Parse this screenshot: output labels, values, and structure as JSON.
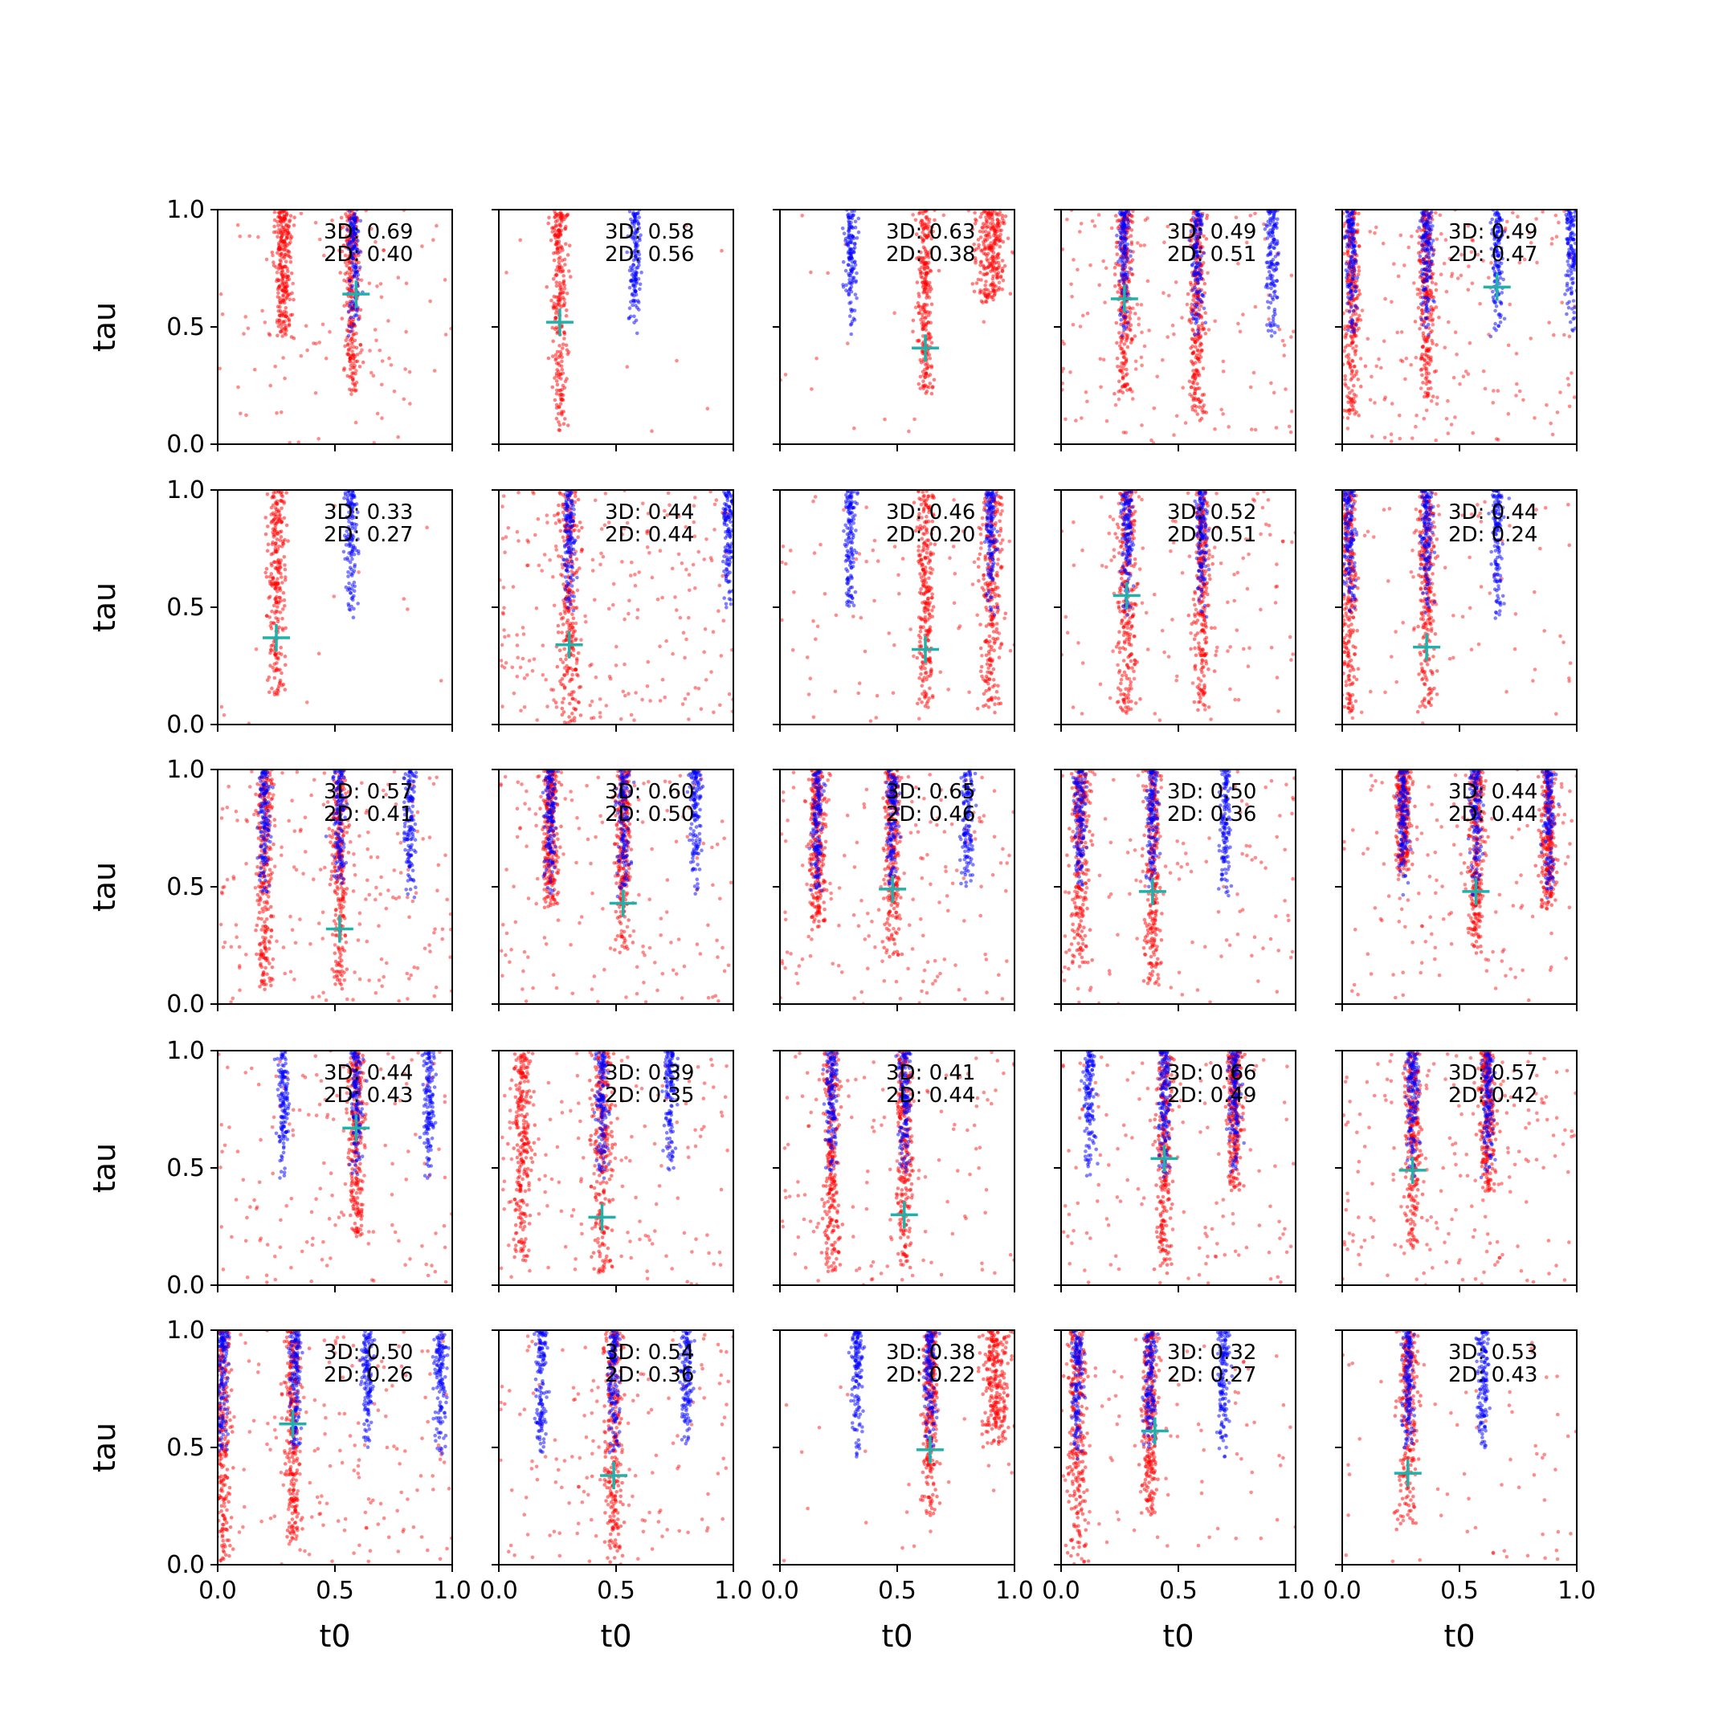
{
  "chart_data": {
    "type": "scatter",
    "layout": "5x5 grid of small-multiple scatter plots, shared axes",
    "xlabel": "t0",
    "ylabel": "tau",
    "xlim": [
      0,
      1
    ],
    "ylim": [
      0,
      1
    ],
    "x_ticks": [
      "0.0",
      "0.5",
      "1.0"
    ],
    "y_ticks": [
      "0.0",
      "0.5",
      "1.0"
    ],
    "grid": false,
    "legend": "none",
    "colors": {
      "red_points": "#ff0000",
      "blue_points": "#0000ff",
      "marker": "#20b2aa"
    },
    "panels": [
      {
        "row": 0,
        "col": 0,
        "score_3d": "3D: 0.69",
        "score_2d": "2D: 0.40",
        "marker": [
          0.59,
          0.64
        ],
        "blue_bands": [
          0.58
        ],
        "red_bands": [
          {
            "x": 0.28,
            "y_min": 0.45,
            "w": 0.03
          },
          {
            "x": 0.57,
            "y_min": 0.22,
            "w": 0.03
          }
        ],
        "red_bg": 0.25
      },
      {
        "row": 0,
        "col": 1,
        "score_3d": "3D: 0.58",
        "score_2d": "2D: 0.56",
        "marker": [
          0.26,
          0.52
        ],
        "blue_bands": [
          0.58
        ],
        "red_bands": [
          {
            "x": 0.26,
            "y_min": 0.05,
            "w": 0.03
          }
        ],
        "red_bg": 0.02
      },
      {
        "row": 0,
        "col": 2,
        "score_3d": "3D: 0.63",
        "score_2d": "2D: 0.38",
        "marker": [
          0.62,
          0.41
        ],
        "blue_bands": [
          0.3
        ],
        "red_bands": [
          {
            "x": 0.62,
            "y_min": 0.2,
            "w": 0.03
          },
          {
            "x": 0.9,
            "y_min": 0.6,
            "w": 0.06
          }
        ],
        "red_bg": 0.05
      },
      {
        "row": 0,
        "col": 3,
        "score_3d": "3D: 0.49",
        "score_2d": "2D: 0.51",
        "marker": [
          0.27,
          0.62
        ],
        "blue_bands": [
          0.27,
          0.58,
          0.9
        ],
        "red_bands": [
          {
            "x": 0.27,
            "y_min": 0.2,
            "w": 0.03
          },
          {
            "x": 0.58,
            "y_min": 0.1,
            "w": 0.03
          }
        ],
        "red_bg": 0.35
      },
      {
        "row": 0,
        "col": 4,
        "score_3d": "3D: 0.49",
        "score_2d": "2D: 0.47",
        "marker": [
          0.66,
          0.67
        ],
        "blue_bands": [
          0.04,
          0.36,
          0.66,
          0.98
        ],
        "red_bands": [
          {
            "x": 0.04,
            "y_min": 0.1,
            "w": 0.03
          },
          {
            "x": 0.36,
            "y_min": 0.2,
            "w": 0.03
          }
        ],
        "red_bg": 0.4
      },
      {
        "row": 1,
        "col": 0,
        "score_3d": "3D: 0.33",
        "score_2d": "2D: 0.27",
        "marker": [
          0.25,
          0.37
        ],
        "blue_bands": [
          0.57
        ],
        "red_bands": [
          {
            "x": 0.25,
            "y_min": 0.12,
            "w": 0.035
          }
        ],
        "red_bg": 0.03
      },
      {
        "row": 1,
        "col": 1,
        "score_3d": "3D: 0.44",
        "score_2d": "2D: 0.44",
        "marker": [
          0.3,
          0.34
        ],
        "blue_bands": [
          0.3,
          0.98
        ],
        "red_bands": [
          {
            "x": 0.3,
            "y_min": 0.0,
            "w": 0.04
          }
        ],
        "red_bg": 0.55
      },
      {
        "row": 1,
        "col": 2,
        "score_3d": "3D: 0.46",
        "score_2d": "2D: 0.20",
        "marker": [
          0.62,
          0.32
        ],
        "blue_bands": [
          0.3,
          0.9
        ],
        "red_bands": [
          {
            "x": 0.62,
            "y_min": 0.05,
            "w": 0.03
          },
          {
            "x": 0.9,
            "y_min": 0.05,
            "w": 0.04
          }
        ],
        "red_bg": 0.2
      },
      {
        "row": 1,
        "col": 3,
        "score_3d": "3D: 0.52",
        "score_2d": "2D: 0.51",
        "marker": [
          0.28,
          0.55
        ],
        "blue_bands": [
          0.28,
          0.6
        ],
        "red_bands": [
          {
            "x": 0.28,
            "y_min": 0.05,
            "w": 0.035
          },
          {
            "x": 0.6,
            "y_min": 0.05,
            "w": 0.03
          }
        ],
        "red_bg": 0.3
      },
      {
        "row": 1,
        "col": 4,
        "score_3d": "3D: 0.44",
        "score_2d": "2D: 0.24",
        "marker": [
          0.36,
          0.33
        ],
        "blue_bands": [
          0.03,
          0.36,
          0.66
        ],
        "red_bands": [
          {
            "x": 0.03,
            "y_min": 0.05,
            "w": 0.03
          },
          {
            "x": 0.36,
            "y_min": 0.05,
            "w": 0.03
          }
        ],
        "red_bg": 0.2
      },
      {
        "row": 2,
        "col": 0,
        "score_3d": "3D: 0.57",
        "score_2d": "2D: 0.41",
        "marker": [
          0.52,
          0.32
        ],
        "blue_bands": [
          0.2,
          0.52,
          0.82
        ],
        "red_bands": [
          {
            "x": 0.2,
            "y_min": 0.05,
            "w": 0.03
          },
          {
            "x": 0.52,
            "y_min": 0.05,
            "w": 0.03
          }
        ],
        "red_bg": 0.45
      },
      {
        "row": 2,
        "col": 1,
        "score_3d": "3D: 0.60",
        "score_2d": "2D: 0.50",
        "marker": [
          0.53,
          0.43
        ],
        "blue_bands": [
          0.22,
          0.53,
          0.84
        ],
        "red_bands": [
          {
            "x": 0.22,
            "y_min": 0.4,
            "w": 0.03
          },
          {
            "x": 0.53,
            "y_min": 0.2,
            "w": 0.03
          }
        ],
        "red_bg": 0.35
      },
      {
        "row": 2,
        "col": 2,
        "score_3d": "3D: 0.65",
        "score_2d": "2D: 0.46",
        "marker": [
          0.48,
          0.49
        ],
        "blue_bands": [
          0.16,
          0.48,
          0.8
        ],
        "red_bands": [
          {
            "x": 0.16,
            "y_min": 0.3,
            "w": 0.03
          },
          {
            "x": 0.48,
            "y_min": 0.2,
            "w": 0.03
          }
        ],
        "red_bg": 0.4
      },
      {
        "row": 2,
        "col": 3,
        "score_3d": "3D: 0.50",
        "score_2d": "2D: 0.36",
        "marker": [
          0.39,
          0.48
        ],
        "blue_bands": [
          0.08,
          0.39,
          0.7
        ],
        "red_bands": [
          {
            "x": 0.08,
            "y_min": 0.15,
            "w": 0.035
          },
          {
            "x": 0.39,
            "y_min": 0.05,
            "w": 0.03
          }
        ],
        "red_bg": 0.3
      },
      {
        "row": 2,
        "col": 4,
        "score_3d": "3D: 0.44",
        "score_2d": "2D: 0.44",
        "marker": [
          0.57,
          0.48
        ],
        "blue_bands": [
          0.26,
          0.57,
          0.88
        ],
        "red_bands": [
          {
            "x": 0.26,
            "y_min": 0.55,
            "w": 0.03
          },
          {
            "x": 0.57,
            "y_min": 0.2,
            "w": 0.03
          },
          {
            "x": 0.88,
            "y_min": 0.4,
            "w": 0.03
          }
        ],
        "red_bg": 0.3
      },
      {
        "row": 3,
        "col": 0,
        "score_3d": "3D: 0.44",
        "score_2d": "2D: 0.43",
        "marker": [
          0.59,
          0.67
        ],
        "blue_bands": [
          0.28,
          0.59,
          0.9
        ],
        "red_bands": [
          {
            "x": 0.59,
            "y_min": 0.2,
            "w": 0.03
          }
        ],
        "red_bg": 0.35
      },
      {
        "row": 3,
        "col": 1,
        "score_3d": "3D: 0.39",
        "score_2d": "2D: 0.35",
        "marker": [
          0.44,
          0.29
        ],
        "blue_bands": [
          0.44,
          0.73
        ],
        "red_bands": [
          {
            "x": 0.1,
            "y_min": 0.1,
            "w": 0.04
          },
          {
            "x": 0.44,
            "y_min": 0.05,
            "w": 0.04
          }
        ],
        "red_bg": 0.35
      },
      {
        "row": 3,
        "col": 2,
        "score_3d": "3D: 0.41",
        "score_2d": "2D: 0.44",
        "marker": [
          0.53,
          0.3
        ],
        "blue_bands": [
          0.22,
          0.53
        ],
        "red_bands": [
          {
            "x": 0.22,
            "y_min": 0.05,
            "w": 0.03
          },
          {
            "x": 0.53,
            "y_min": 0.05,
            "w": 0.03
          }
        ],
        "red_bg": 0.3
      },
      {
        "row": 3,
        "col": 3,
        "score_3d": "3D: 0.66",
        "score_2d": "2D: 0.49",
        "marker": [
          0.44,
          0.54
        ],
        "blue_bands": [
          0.12,
          0.44,
          0.74
        ],
        "red_bands": [
          {
            "x": 0.44,
            "y_min": 0.05,
            "w": 0.03
          },
          {
            "x": 0.74,
            "y_min": 0.4,
            "w": 0.03
          }
        ],
        "red_bg": 0.3
      },
      {
        "row": 3,
        "col": 4,
        "score_3d": "3D: 0.57",
        "score_2d": "2D: 0.42",
        "marker": [
          0.3,
          0.49
        ],
        "blue_bands": [
          0.3,
          0.62
        ],
        "red_bands": [
          {
            "x": 0.3,
            "y_min": 0.15,
            "w": 0.03
          },
          {
            "x": 0.62,
            "y_min": 0.4,
            "w": 0.03
          }
        ],
        "red_bg": 0.45
      },
      {
        "row": 4,
        "col": 0,
        "score_3d": "3D: 0.50",
        "score_2d": "2D: 0.26",
        "marker": [
          0.32,
          0.6
        ],
        "blue_bands": [
          0.02,
          0.33,
          0.64,
          0.95
        ],
        "red_bands": [
          {
            "x": 0.02,
            "y_min": 0.0,
            "w": 0.03
          },
          {
            "x": 0.32,
            "y_min": 0.1,
            "w": 0.03
          }
        ],
        "red_bg": 0.4
      },
      {
        "row": 4,
        "col": 1,
        "score_3d": "3D: 0.54",
        "score_2d": "2D: 0.36",
        "marker": [
          0.49,
          0.38
        ],
        "blue_bands": [
          0.18,
          0.49,
          0.8
        ],
        "red_bands": [
          {
            "x": 0.49,
            "y_min": 0.0,
            "w": 0.035
          }
        ],
        "red_bg": 0.35
      },
      {
        "row": 4,
        "col": 2,
        "score_3d": "3D: 0.38",
        "score_2d": "2D: 0.22",
        "marker": [
          0.64,
          0.49
        ],
        "blue_bands": [
          0.33,
          0.64
        ],
        "red_bands": [
          {
            "x": 0.64,
            "y_min": 0.2,
            "w": 0.03
          },
          {
            "x": 0.92,
            "y_min": 0.5,
            "w": 0.05
          }
        ],
        "red_bg": 0.05
      },
      {
        "row": 4,
        "col": 3,
        "score_3d": "3D: 0.32",
        "score_2d": "2D: 0.27",
        "marker": [
          0.4,
          0.57
        ],
        "blue_bands": [
          0.07,
          0.38,
          0.69
        ],
        "red_bands": [
          {
            "x": 0.07,
            "y_min": 0.0,
            "w": 0.035
          },
          {
            "x": 0.38,
            "y_min": 0.2,
            "w": 0.03
          }
        ],
        "red_bg": 0.2
      },
      {
        "row": 4,
        "col": 4,
        "score_3d": "3D: 0.53",
        "score_2d": "2D: 0.43",
        "marker": [
          0.28,
          0.39
        ],
        "blue_bands": [
          0.28,
          0.6
        ],
        "red_bands": [
          {
            "x": 0.28,
            "y_min": 0.15,
            "w": 0.035
          }
        ],
        "red_bg": 0.15
      }
    ]
  }
}
